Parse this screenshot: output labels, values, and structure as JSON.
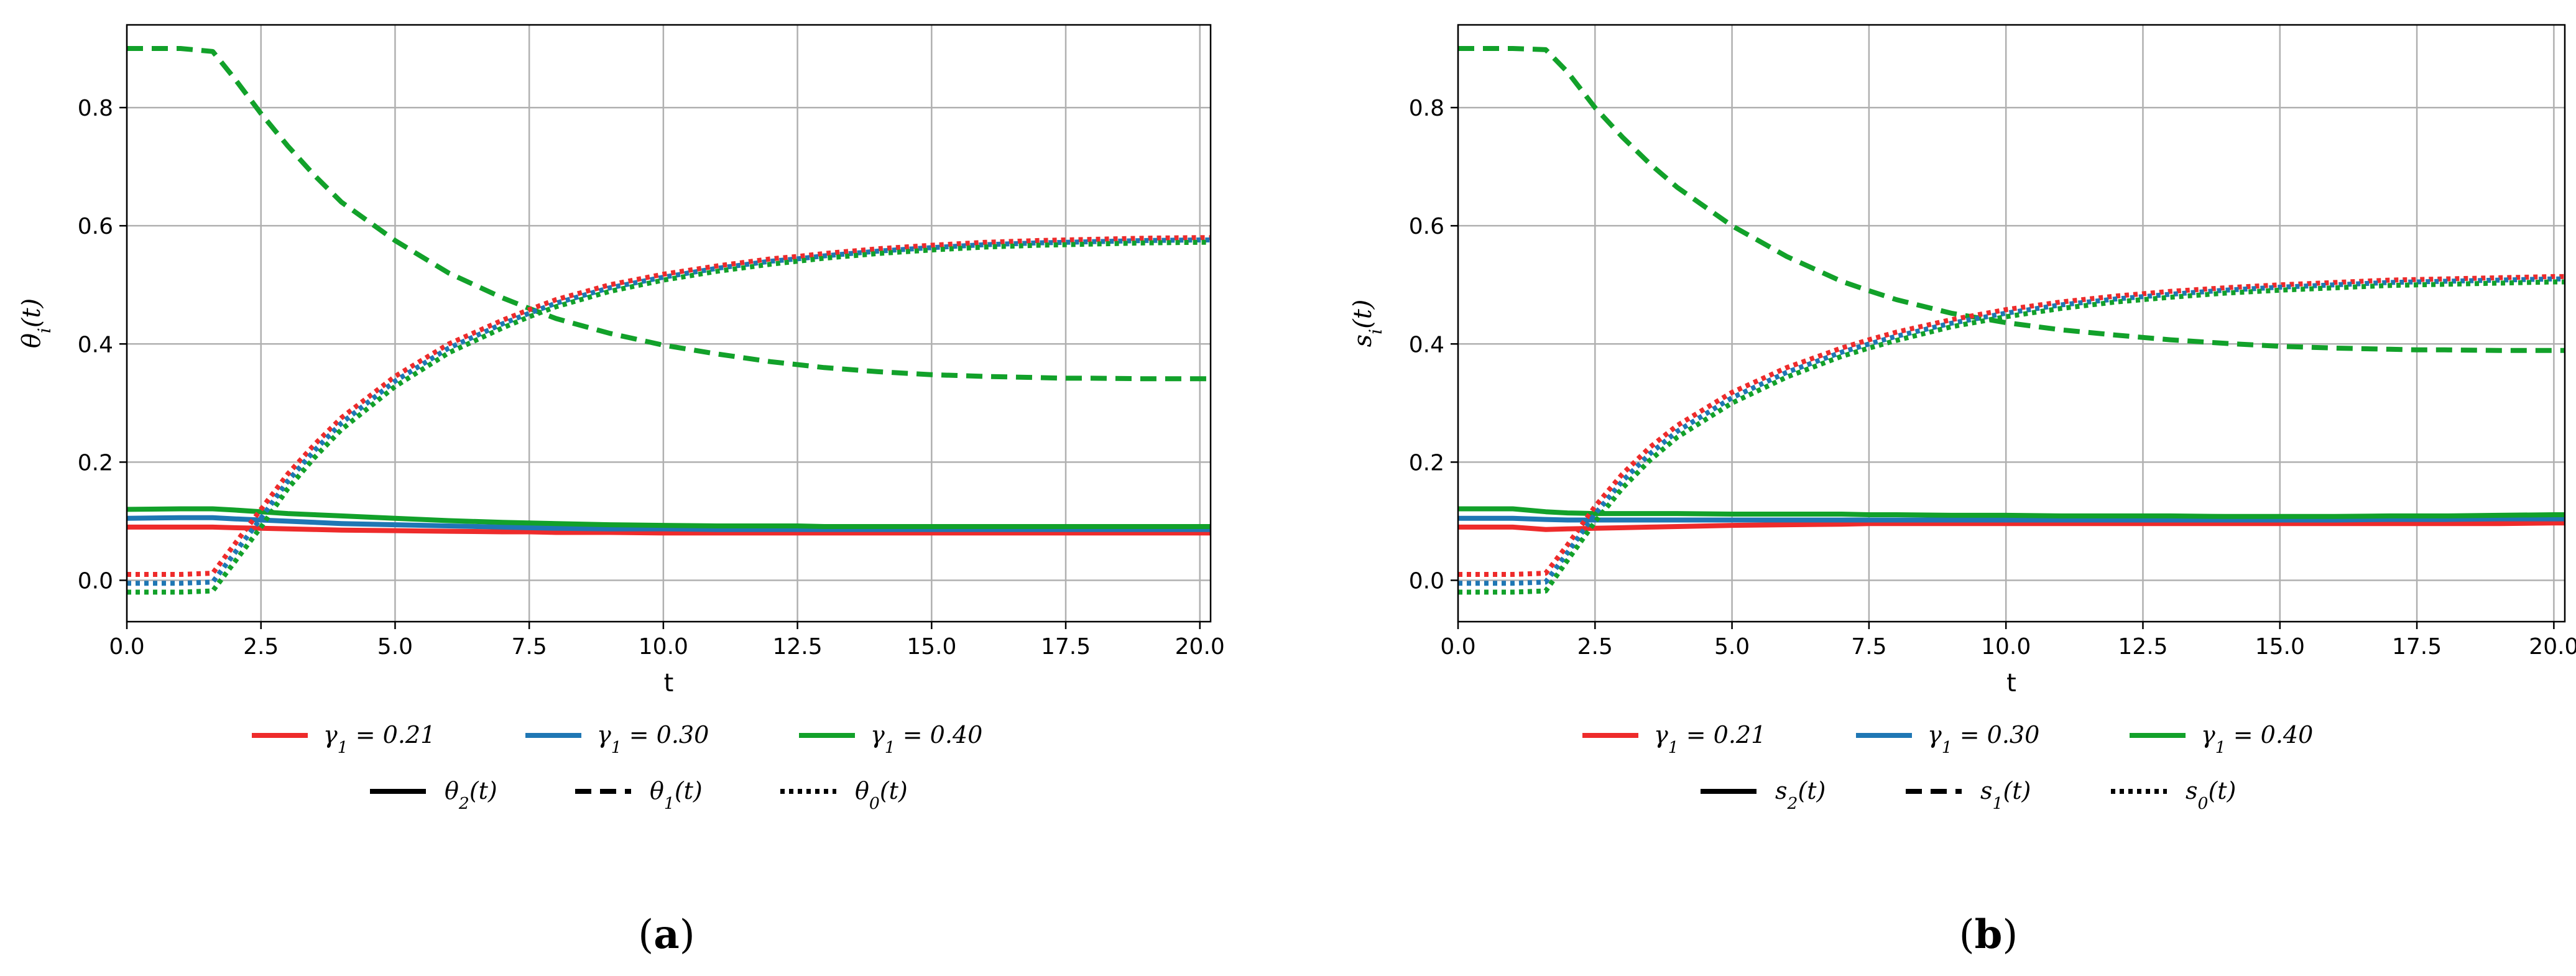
{
  "colors": {
    "gamma_021": "#ee2b2b",
    "gamma_030": "#1f77b4",
    "gamma_040": "#12a12a",
    "grid": "#b0b0b0",
    "axis": "#000000"
  },
  "chart_data": [
    {
      "type": "line",
      "panel_caption": "(a)",
      "panel_letter": "a",
      "xlabel": "t",
      "ylabel": "θi(t)",
      "ylabel_base": "θ",
      "ylabel_sub": "i",
      "ylabel_tail": "(t)",
      "xlim": [
        0,
        20.2
      ],
      "ylim": [
        -0.07,
        0.94
      ],
      "x_ticks": [
        0.0,
        2.5,
        5.0,
        7.5,
        10.0,
        12.5,
        15.0,
        17.5,
        20.0
      ],
      "x_tick_labels": [
        "0.0",
        "2.5",
        "5.0",
        "7.5",
        "10.0",
        "12.5",
        "15.0",
        "17.5",
        "20.0"
      ],
      "y_ticks": [
        0.0,
        0.2,
        0.4,
        0.6,
        0.8
      ],
      "y_tick_labels": [
        "0.0",
        "0.2",
        "0.4",
        "0.6",
        "0.8"
      ],
      "grid": true,
      "legend_placement": "below",
      "legend_color": [
        {
          "label": "γ1 = 0.21",
          "base": "γ",
          "sub": "1",
          "tail": " = 0.21",
          "color_key": "gamma_021"
        },
        {
          "label": "γ1 = 0.30",
          "base": "γ",
          "sub": "1",
          "tail": " = 0.30",
          "color_key": "gamma_030"
        },
        {
          "label": "γ1 = 0.40",
          "base": "γ",
          "sub": "1",
          "tail": " = 0.40",
          "color_key": "gamma_040"
        }
      ],
      "legend_style": [
        {
          "label": "θ2(t)",
          "base": "θ",
          "sub": "2",
          "tail": "(t)",
          "dash": "solid"
        },
        {
          "label": "θ1(t)",
          "base": "θ",
          "sub": "1",
          "tail": "(t)",
          "dash": "dashed"
        },
        {
          "label": "θ0(t)",
          "base": "θ",
          "sub": "0",
          "tail": "(t)",
          "dash": "dotted"
        }
      ],
      "x": [
        0,
        1,
        1.6,
        2,
        2.5,
        3,
        3.5,
        4,
        5,
        6,
        7,
        7.5,
        8,
        9,
        10,
        11,
        12,
        12.5,
        13,
        14,
        15,
        16,
        17,
        17.5,
        18,
        19,
        20,
        20.2
      ],
      "series": [
        {
          "var": "θ2",
          "dash": "solid",
          "color_key": "gamma_021",
          "values": [
            0.09,
            0.09,
            0.09,
            0.089,
            0.088,
            0.087,
            0.086,
            0.085,
            0.084,
            0.083,
            0.082,
            0.082,
            0.081,
            0.081,
            0.08,
            0.08,
            0.08,
            0.08,
            0.08,
            0.08,
            0.08,
            0.08,
            0.08,
            0.08,
            0.08,
            0.08,
            0.08,
            0.08
          ]
        },
        {
          "var": "θ2",
          "dash": "solid",
          "color_key": "gamma_030",
          "values": [
            0.105,
            0.106,
            0.106,
            0.104,
            0.102,
            0.1,
            0.098,
            0.096,
            0.094,
            0.092,
            0.09,
            0.089,
            0.088,
            0.087,
            0.087,
            0.086,
            0.086,
            0.086,
            0.086,
            0.086,
            0.086,
            0.086,
            0.086,
            0.086,
            0.086,
            0.086,
            0.086,
            0.086
          ]
        },
        {
          "var": "θ2",
          "dash": "solid",
          "color_key": "gamma_040",
          "values": [
            0.12,
            0.121,
            0.121,
            0.119,
            0.116,
            0.113,
            0.111,
            0.109,
            0.105,
            0.101,
            0.098,
            0.097,
            0.096,
            0.094,
            0.093,
            0.092,
            0.092,
            0.092,
            0.091,
            0.091,
            0.091,
            0.091,
            0.091,
            0.091,
            0.091,
            0.091,
            0.091,
            0.091
          ]
        },
        {
          "var": "θ1",
          "dash": "dashed",
          "color_key": "gamma_040",
          "values": [
            0.9,
            0.9,
            0.895,
            0.85,
            0.79,
            0.735,
            0.685,
            0.64,
            0.575,
            0.52,
            0.478,
            0.46,
            0.443,
            0.418,
            0.398,
            0.383,
            0.37,
            0.365,
            0.36,
            0.353,
            0.348,
            0.345,
            0.343,
            0.342,
            0.342,
            0.341,
            0.341,
            0.341
          ]
        },
        {
          "var": "θ0",
          "dash": "dotted",
          "color_key": "gamma_021",
          "values": [
            0.01,
            0.01,
            0.012,
            0.06,
            0.12,
            0.18,
            0.23,
            0.275,
            0.345,
            0.4,
            0.44,
            0.458,
            0.475,
            0.5,
            0.518,
            0.532,
            0.544,
            0.548,
            0.553,
            0.561,
            0.567,
            0.572,
            0.575,
            0.576,
            0.577,
            0.579,
            0.58,
            0.58
          ]
        },
        {
          "var": "θ0",
          "dash": "dotted",
          "color_key": "gamma_030",
          "values": [
            -0.005,
            -0.005,
            -0.003,
            0.045,
            0.105,
            0.168,
            0.22,
            0.266,
            0.337,
            0.393,
            0.434,
            0.452,
            0.469,
            0.495,
            0.513,
            0.528,
            0.54,
            0.544,
            0.549,
            0.557,
            0.563,
            0.568,
            0.571,
            0.572,
            0.573,
            0.575,
            0.576,
            0.576
          ]
        },
        {
          "var": "θ0",
          "dash": "dotted",
          "color_key": "gamma_040",
          "values": [
            -0.02,
            -0.02,
            -0.018,
            0.03,
            0.09,
            0.155,
            0.208,
            0.255,
            0.328,
            0.385,
            0.427,
            0.446,
            0.463,
            0.489,
            0.508,
            0.523,
            0.535,
            0.54,
            0.545,
            0.553,
            0.559,
            0.564,
            0.567,
            0.568,
            0.569,
            0.571,
            0.572,
            0.572
          ]
        }
      ]
    },
    {
      "type": "line",
      "panel_caption": "(b)",
      "panel_letter": "b",
      "xlabel": "t",
      "ylabel": "si(t)",
      "ylabel_base": "s",
      "ylabel_sub": "i",
      "ylabel_tail": "(t)",
      "xlim": [
        0,
        20.2
      ],
      "ylim": [
        -0.07,
        0.94
      ],
      "x_ticks": [
        0.0,
        2.5,
        5.0,
        7.5,
        10.0,
        12.5,
        15.0,
        17.5,
        20.0
      ],
      "x_tick_labels": [
        "0.0",
        "2.5",
        "5.0",
        "7.5",
        "10.0",
        "12.5",
        "15.0",
        "17.5",
        "20.0"
      ],
      "y_ticks": [
        0.0,
        0.2,
        0.4,
        0.6,
        0.8
      ],
      "y_tick_labels": [
        "0.0",
        "0.2",
        "0.4",
        "0.6",
        "0.8"
      ],
      "grid": true,
      "legend_placement": "below",
      "legend_color": [
        {
          "label": "γ1 = 0.21",
          "base": "γ",
          "sub": "1",
          "tail": " = 0.21",
          "color_key": "gamma_021"
        },
        {
          "label": "γ1 = 0.30",
          "base": "γ",
          "sub": "1",
          "tail": " = 0.30",
          "color_key": "gamma_030"
        },
        {
          "label": "γ1 = 0.40",
          "base": "γ",
          "sub": "1",
          "tail": " = 0.40",
          "color_key": "gamma_040"
        }
      ],
      "legend_style": [
        {
          "label": "s2(t)",
          "base": "s",
          "sub": "2",
          "tail": "(t)",
          "dash": "solid"
        },
        {
          "label": "s1(t)",
          "base": "s",
          "sub": "1",
          "tail": "(t)",
          "dash": "dashed"
        },
        {
          "label": "s0(t)",
          "base": "s",
          "sub": "0",
          "tail": "(t)",
          "dash": "dotted"
        }
      ],
      "x": [
        0,
        1,
        1.6,
        2,
        2.5,
        3,
        3.5,
        4,
        5,
        6,
        7,
        7.5,
        8,
        9,
        10,
        11,
        12,
        12.5,
        13,
        14,
        15,
        16,
        17,
        17.5,
        18,
        19,
        20,
        20.2
      ],
      "series": [
        {
          "var": "s2",
          "dash": "solid",
          "color_key": "gamma_021",
          "values": [
            0.09,
            0.09,
            0.086,
            0.087,
            0.088,
            0.089,
            0.09,
            0.091,
            0.093,
            0.094,
            0.095,
            0.096,
            0.096,
            0.096,
            0.096,
            0.096,
            0.096,
            0.096,
            0.096,
            0.096,
            0.096,
            0.096,
            0.096,
            0.096,
            0.096,
            0.096,
            0.097,
            0.097
          ]
        },
        {
          "var": "s2",
          "dash": "solid",
          "color_key": "gamma_030",
          "values": [
            0.105,
            0.105,
            0.103,
            0.102,
            0.102,
            0.102,
            0.102,
            0.102,
            0.102,
            0.102,
            0.102,
            0.102,
            0.102,
            0.102,
            0.102,
            0.102,
            0.102,
            0.102,
            0.102,
            0.102,
            0.102,
            0.102,
            0.103,
            0.103,
            0.103,
            0.104,
            0.104,
            0.104
          ]
        },
        {
          "var": "s2",
          "dash": "solid",
          "color_key": "gamma_040",
          "values": [
            0.121,
            0.121,
            0.116,
            0.114,
            0.113,
            0.113,
            0.113,
            0.113,
            0.112,
            0.112,
            0.112,
            0.111,
            0.111,
            0.11,
            0.11,
            0.109,
            0.109,
            0.109,
            0.109,
            0.108,
            0.108,
            0.108,
            0.109,
            0.109,
            0.109,
            0.11,
            0.111,
            0.111
          ]
        },
        {
          "var": "s1",
          "dash": "dashed",
          "color_key": "gamma_040",
          "values": [
            0.9,
            0.9,
            0.898,
            0.86,
            0.8,
            0.75,
            0.705,
            0.665,
            0.6,
            0.548,
            0.506,
            0.49,
            0.475,
            0.452,
            0.436,
            0.424,
            0.415,
            0.411,
            0.407,
            0.401,
            0.396,
            0.393,
            0.391,
            0.39,
            0.39,
            0.389,
            0.389,
            0.389
          ]
        },
        {
          "var": "s0",
          "dash": "dotted",
          "color_key": "gamma_021",
          "values": [
            0.01,
            0.01,
            0.012,
            0.06,
            0.125,
            0.18,
            0.225,
            0.262,
            0.318,
            0.36,
            0.393,
            0.407,
            0.42,
            0.441,
            0.458,
            0.471,
            0.481,
            0.485,
            0.489,
            0.495,
            0.5,
            0.504,
            0.508,
            0.509,
            0.51,
            0.512,
            0.514,
            0.514
          ]
        },
        {
          "var": "s0",
          "dash": "dotted",
          "color_key": "gamma_030",
          "values": [
            -0.005,
            -0.005,
            -0.003,
            0.047,
            0.112,
            0.168,
            0.214,
            0.252,
            0.309,
            0.352,
            0.386,
            0.4,
            0.413,
            0.435,
            0.452,
            0.466,
            0.476,
            0.48,
            0.484,
            0.491,
            0.496,
            0.5,
            0.504,
            0.505,
            0.506,
            0.508,
            0.51,
            0.51
          ]
        },
        {
          "var": "s0",
          "dash": "dotted",
          "color_key": "gamma_040",
          "values": [
            -0.02,
            -0.02,
            -0.018,
            0.034,
            0.099,
            0.156,
            0.203,
            0.242,
            0.3,
            0.344,
            0.379,
            0.393,
            0.406,
            0.429,
            0.446,
            0.46,
            0.471,
            0.475,
            0.479,
            0.486,
            0.491,
            0.495,
            0.499,
            0.5,
            0.501,
            0.503,
            0.505,
            0.505
          ]
        }
      ]
    }
  ]
}
